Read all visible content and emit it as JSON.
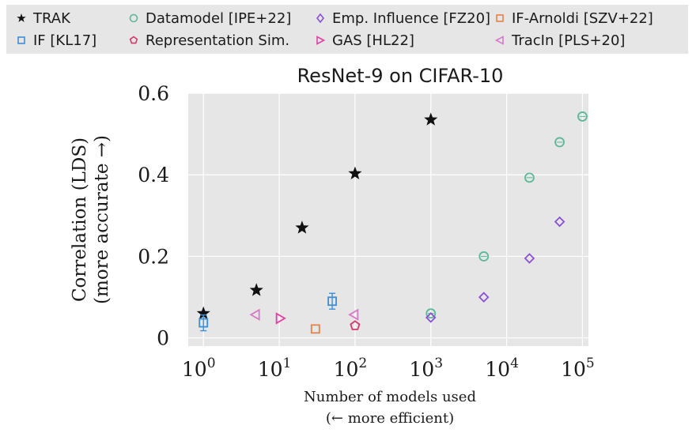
{
  "chart_data": {
    "type": "scatter",
    "title": "ResNet-9 on CIFAR-10",
    "xlabel": "Number of models used",
    "xlabel_sub": "(← more efficient)",
    "ylabel": "Correlation (LDS)",
    "ylabel_sub": "(more accurate →)",
    "x_scale": "log",
    "xlim": [
      0.63,
      120000
    ],
    "ylim": [
      -0.02,
      0.6
    ],
    "grid": true,
    "legend_position": "top",
    "x_ticks": [
      {
        "value": 1,
        "base": "10",
        "exp": "0"
      },
      {
        "value": 10,
        "base": "10",
        "exp": "1"
      },
      {
        "value": 100,
        "base": "10",
        "exp": "2"
      },
      {
        "value": 1000,
        "base": "10",
        "exp": "3"
      },
      {
        "value": 10000,
        "base": "10",
        "exp": "4"
      },
      {
        "value": 100000,
        "base": "10",
        "exp": "5"
      }
    ],
    "y_ticks": [
      {
        "value": 0,
        "label": "0"
      },
      {
        "value": 0.2,
        "label": "0.2"
      },
      {
        "value": 0.4,
        "label": "0.4"
      },
      {
        "value": 0.6,
        "label": "0.6"
      }
    ],
    "series": [
      {
        "name": "TRAK",
        "marker": "star",
        "color": "#111111",
        "points": [
          {
            "x": 1,
            "y": 0.06
          },
          {
            "x": 5,
            "y": 0.117
          },
          {
            "x": 20,
            "y": 0.27
          },
          {
            "x": 100,
            "y": 0.403
          },
          {
            "x": 1000,
            "y": 0.535
          }
        ]
      },
      {
        "name": "Datamodel [IPE+22]",
        "marker": "circle",
        "color": "#5cb896",
        "points": [
          {
            "x": 1000,
            "y": 0.06
          },
          {
            "x": 5000,
            "y": 0.2
          },
          {
            "x": 20000,
            "y": 0.393
          },
          {
            "x": 50000,
            "y": 0.48
          },
          {
            "x": 100000,
            "y": 0.543
          }
        ]
      },
      {
        "name": "Emp. Influence [FZ20]",
        "marker": "diamond",
        "color": "#8a4fd6",
        "points": [
          {
            "x": 1000,
            "y": 0.05
          },
          {
            "x": 5000,
            "y": 0.1
          },
          {
            "x": 20000,
            "y": 0.195
          },
          {
            "x": 50000,
            "y": 0.285
          }
        ]
      },
      {
        "name": "IF-Arnoldi [SZV+22]",
        "marker": "square",
        "color": "#e8804a",
        "points": [
          {
            "x": 30,
            "y": 0.022
          }
        ]
      },
      {
        "name": "IF [KL17]",
        "marker": "square",
        "color": "#3b8ed8",
        "points": [
          {
            "x": 1,
            "y": 0.037
          },
          {
            "x": 50,
            "y": 0.09
          }
        ]
      },
      {
        "name": "Representation Sim.",
        "marker": "pentagon",
        "color": "#d2386c",
        "points": [
          {
            "x": 100,
            "y": 0.03
          }
        ]
      },
      {
        "name": "GAS [HL22]",
        "marker": "tri-right",
        "color": "#e040a0",
        "points": [
          {
            "x": 10,
            "y": 0.048
          }
        ]
      },
      {
        "name": "TracIn [PLS+20]",
        "marker": "tri-left",
        "color": "#d878c8",
        "points": [
          {
            "x": 5,
            "y": 0.057
          },
          {
            "x": 100,
            "y": 0.057
          }
        ]
      }
    ]
  }
}
